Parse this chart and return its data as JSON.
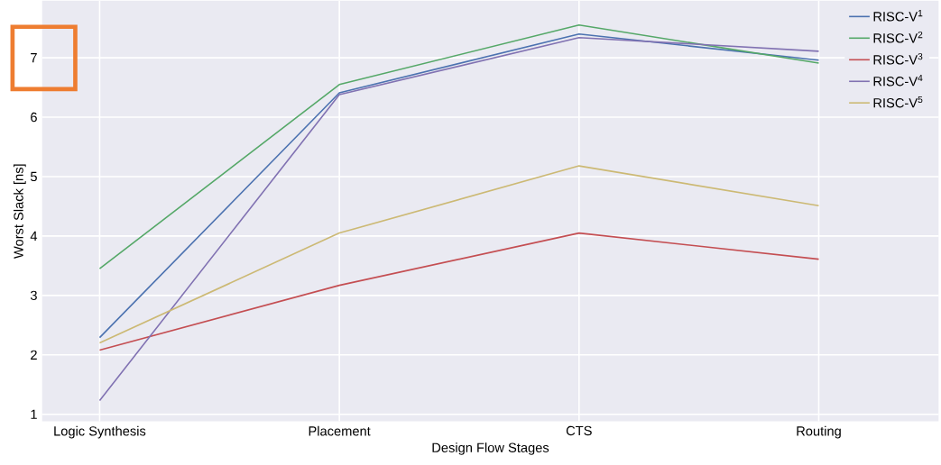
{
  "chart_data": {
    "type": "line",
    "xlabel": "Design Flow Stages",
    "ylabel": "Worst Slack [ns]",
    "categories": [
      "Logic Synthesis",
      "Placement",
      "CTS",
      "Routing"
    ],
    "series": [
      {
        "name": "RISC-V$^{1}$",
        "color": "#4c72b0",
        "values": [
          2.29,
          6.41,
          7.4,
          6.96
        ]
      },
      {
        "name": "RISC-V$^{2}$",
        "color": "#55a868",
        "values": [
          3.45,
          6.55,
          7.55,
          6.91
        ]
      },
      {
        "name": "RISC-V$^{3}$",
        "color": "#c44e52",
        "values": [
          2.08,
          3.17,
          4.05,
          3.61
        ]
      },
      {
        "name": "RISC-V$^{4}$",
        "color": "#8172b2",
        "values": [
          1.23,
          6.38,
          7.34,
          7.11
        ]
      },
      {
        "name": "RISC-V$^{5}$",
        "color": "#ccb974",
        "values": [
          2.2,
          4.05,
          5.18,
          4.51
        ]
      }
    ],
    "ylim": [
      0.88,
      7.96
    ],
    "yticks": [
      1,
      2,
      3,
      4,
      5,
      6,
      7
    ],
    "grid": true,
    "legend": "top right"
  }
}
